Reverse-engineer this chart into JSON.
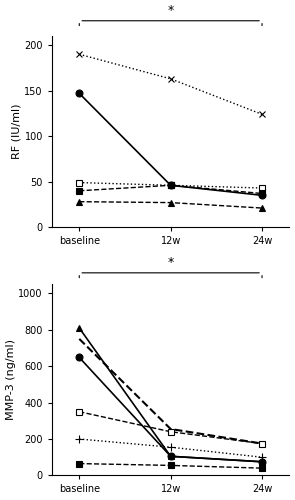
{
  "xticklabels": [
    "baseline",
    "12w",
    "24w"
  ],
  "x": [
    0,
    1,
    2
  ],
  "rf_series": [
    {
      "values": [
        190,
        163,
        124
      ],
      "marker": "x",
      "linestyle": "dotted",
      "color": "black",
      "markersize": 5,
      "markerfacecolor": "none",
      "lw": 1.0
    },
    {
      "values": [
        147,
        46,
        35
      ],
      "marker": "o",
      "linestyle": "solid",
      "color": "black",
      "markersize": 5,
      "markerfacecolor": "black",
      "lw": 1.2
    },
    {
      "values": [
        49,
        46,
        43
      ],
      "marker": "s",
      "linestyle": "dotted",
      "color": "black",
      "markersize": 4,
      "markerfacecolor": "white",
      "lw": 1.0
    },
    {
      "values": [
        40,
        46,
        37
      ],
      "marker": "s",
      "linestyle": "dashed",
      "color": "black",
      "markersize": 4,
      "markerfacecolor": "black",
      "lw": 1.0
    },
    {
      "values": [
        28,
        27,
        21
      ],
      "marker": "^",
      "linestyle": "dashed",
      "color": "black",
      "markersize": 5,
      "markerfacecolor": "black",
      "lw": 1.0
    }
  ],
  "rf_ylabel": "RF (IU/ml)",
  "rf_ylim": [
    0,
    210
  ],
  "rf_yticks": [
    0,
    50,
    100,
    150,
    200
  ],
  "mmp_series": [
    {
      "values": [
        810,
        105,
        75
      ],
      "marker": "^",
      "linestyle": "solid",
      "color": "black",
      "markersize": 5,
      "markerfacecolor": "black",
      "lw": 1.2
    },
    {
      "values": [
        648,
        105,
        75
      ],
      "marker": "o",
      "linestyle": "solid",
      "color": "black",
      "markersize": 5,
      "markerfacecolor": "black",
      "lw": 1.2
    },
    {
      "values": [
        350,
        240,
        175
      ],
      "marker": "s",
      "linestyle": "dashed",
      "color": "black",
      "markersize": 4,
      "markerfacecolor": "white",
      "lw": 1.0
    },
    {
      "values": [
        200,
        155,
        100
      ],
      "marker": "+",
      "linestyle": "dotted",
      "color": "black",
      "markersize": 6,
      "markerfacecolor": "black",
      "lw": 1.0
    },
    {
      "values": [
        750,
        255,
        175
      ],
      "marker": "none",
      "linestyle": "dashed",
      "color": "black",
      "markersize": 0,
      "lw": 1.5
    },
    {
      "values": [
        65,
        55,
        40
      ],
      "marker": "s",
      "linestyle": "dashed",
      "color": "black",
      "markersize": 4,
      "markerfacecolor": "black",
      "lw": 1.0
    }
  ],
  "mmp_ylabel": "MMP-3 (ng/ml)",
  "mmp_ylim": [
    0,
    1050
  ],
  "mmp_yticks": [
    0,
    200,
    400,
    600,
    800,
    1000
  ],
  "significance_label": "*",
  "background_color": "#ffffff",
  "tick_fontsize": 7,
  "label_fontsize": 8
}
